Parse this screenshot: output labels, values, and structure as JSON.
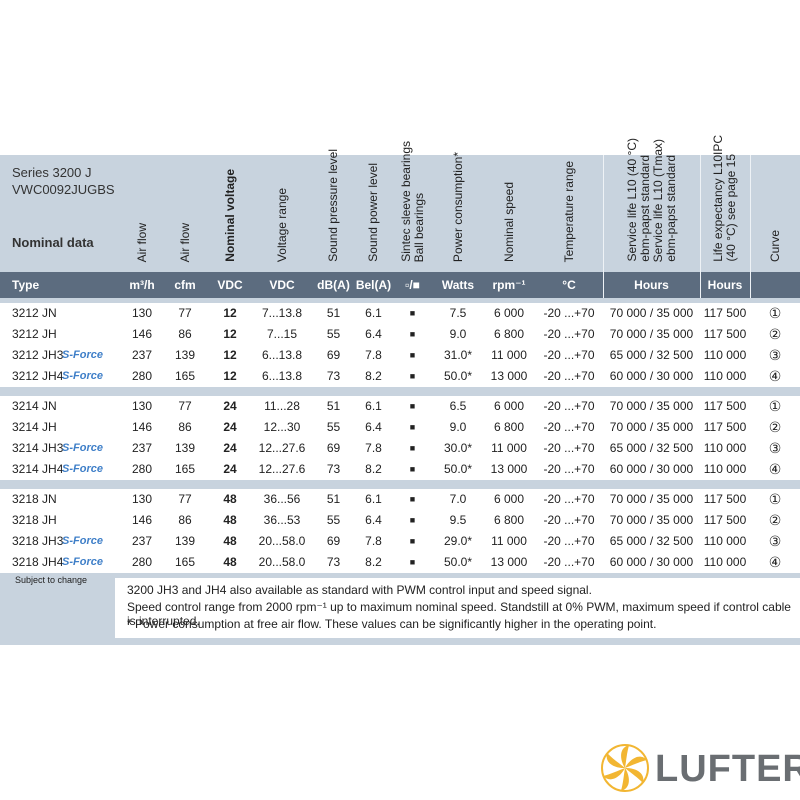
{
  "header": {
    "series": "Series 3200 J",
    "code": "VWC0092JUGBS",
    "section": "Nominal data"
  },
  "columns": [
    {
      "title": null,
      "unit": "Type"
    },
    {
      "title": "Air flow",
      "unit": "m³/h"
    },
    {
      "title": "Air flow",
      "unit": "cfm"
    },
    {
      "title": "Nominal voltage",
      "unit": "VDC"
    },
    {
      "title": "Voltage range",
      "unit": "VDC"
    },
    {
      "title": "Sound pressure level",
      "unit": "dB(A)"
    },
    {
      "title": "Sound power level",
      "unit": "Bel(A)"
    },
    {
      "title": [
        "Sintec sleeve bearings",
        "Ball bearings"
      ],
      "unit": "▫/■"
    },
    {
      "title": "Power consumption*",
      "unit": "Watts"
    },
    {
      "title": "Nominal speed",
      "unit": "rpm⁻¹"
    },
    {
      "title": "Temperature range",
      "unit": "°C"
    },
    {
      "title": [
        "Service life L10 (40 °C)",
        "ebm-papst standard",
        "Service life L10 (Tmax)",
        "ebm-papst standard"
      ],
      "unit": "Hours"
    },
    {
      "title": [
        "Life expectancy L10IPC",
        "(40 °C)  see page 15"
      ],
      "unit": "Hours"
    },
    {
      "title": "Curve",
      "unit": null
    }
  ],
  "groups": [
    {
      "rows": [
        {
          "cells": [
            "3212 JN",
            "130",
            "77",
            "12",
            "7...13.8",
            "51",
            "6.1",
            "■",
            "7.5",
            "6 000",
            "-20 ...+70",
            "70 000 / 35 000",
            "117 500",
            "①"
          ]
        },
        {
          "cells": [
            "3212 JH",
            "146",
            "86",
            "12",
            "7...15",
            "55",
            "6.4",
            "■",
            "9.0",
            "6 800",
            "-20 ...+70",
            "70 000 / 35 000",
            "117 500",
            "②"
          ]
        },
        {
          "cells": [
            "3212 JH3",
            "237",
            "139",
            "12",
            "6...13.8",
            "69",
            "7.8",
            "■",
            "31.0*",
            "11 000",
            "-20 ...+70",
            "65 000 / 32 500",
            "110 000",
            "③"
          ],
          "badge": "S-Force"
        },
        {
          "cells": [
            "3212 JH4",
            "280",
            "165",
            "12",
            "6...13.8",
            "73",
            "8.2",
            "■",
            "50.0*",
            "13 000",
            "-20 ...+70",
            "60 000 / 30 000",
            "110 000",
            "④"
          ],
          "badge": "S-Force"
        }
      ]
    },
    {
      "rows": [
        {
          "cells": [
            "3214 JN",
            "130",
            "77",
            "24",
            "11...28",
            "51",
            "6.1",
            "■",
            "6.5",
            "6 000",
            "-20 ...+70",
            "70 000 / 35 000",
            "117 500",
            "①"
          ]
        },
        {
          "cells": [
            "3214 JH",
            "146",
            "86",
            "24",
            "12...30",
            "55",
            "6.4",
            "■",
            "9.0",
            "6 800",
            "-20 ...+70",
            "70 000 / 35 000",
            "117 500",
            "②"
          ]
        },
        {
          "cells": [
            "3214 JH3",
            "237",
            "139",
            "24",
            "12...27.6",
            "69",
            "7.8",
            "■",
            "30.0*",
            "11 000",
            "-20 ...+70",
            "65 000 / 32 500",
            "110 000",
            "③"
          ],
          "badge": "S-Force"
        },
        {
          "cells": [
            "3214 JH4",
            "280",
            "165",
            "24",
            "12...27.6",
            "73",
            "8.2",
            "■",
            "50.0*",
            "13 000",
            "-20 ...+70",
            "60 000 / 30 000",
            "110 000",
            "④"
          ],
          "badge": "S-Force"
        }
      ]
    },
    {
      "rows": [
        {
          "cells": [
            "3218 JN",
            "130",
            "77",
            "48",
            "36...56",
            "51",
            "6.1",
            "■",
            "7.0",
            "6 000",
            "-20 ...+70",
            "70 000 / 35 000",
            "117 500",
            "①"
          ]
        },
        {
          "cells": [
            "3218 JH",
            "146",
            "86",
            "48",
            "36...53",
            "55",
            "6.4",
            "■",
            "9.5",
            "6 800",
            "-20 ...+70",
            "70 000 / 35 000",
            "117 500",
            "②"
          ]
        },
        {
          "cells": [
            "3218 JH3",
            "237",
            "139",
            "48",
            "20...58.0",
            "69",
            "7.8",
            "■",
            "29.0*",
            "11 000",
            "-20 ...+70",
            "65 000 / 32 500",
            "110 000",
            "③"
          ],
          "badge": "S-Force"
        },
        {
          "cells": [
            "3218 JH4",
            "280",
            "165",
            "48",
            "20...58.0",
            "73",
            "8.2",
            "■",
            "50.0*",
            "13 000",
            "-20 ...+70",
            "60 000 / 30 000",
            "110 000",
            "④"
          ],
          "badge": "S-Force"
        }
      ]
    }
  ],
  "footer": {
    "subject": "Subject to change",
    "notes": [
      "3200 JH3 and JH4 also available as standard with PWM control input and speed signal.",
      "Speed control range from 2000 rpm⁻¹ up to maximum nominal speed. Standstill at 0% PWM, maximum speed if control cable is interrupted.",
      "* Power consumption at free air flow. These values can be significantly higher in the operating point."
    ]
  },
  "logo": "LUFTER"
}
